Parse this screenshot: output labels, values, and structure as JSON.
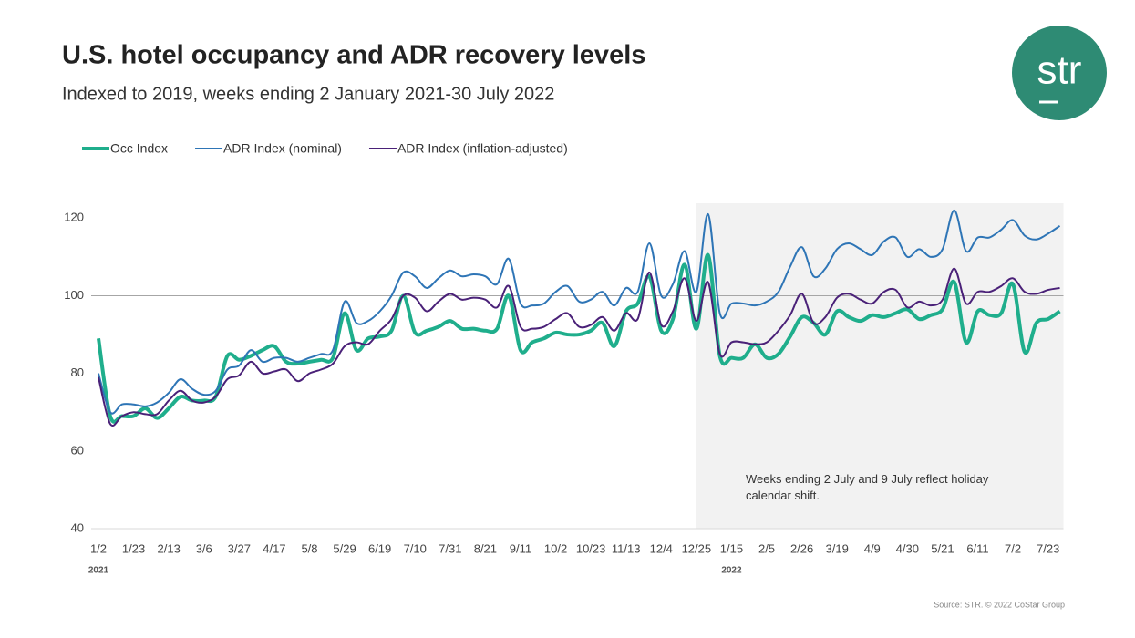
{
  "title": "U.S. hotel occupancy and ADR recovery levels",
  "subtitle": "Indexed to 2019, weeks ending 2 January 2021-30 July 2022",
  "logo": "str",
  "source": "Source: STR. © 2022 CoStar Group",
  "chart_data": {
    "type": "line",
    "categories": [
      "1/2",
      null,
      null,
      "1/23",
      null,
      null,
      "2/13",
      null,
      null,
      "3/6",
      null,
      null,
      "3/27",
      null,
      null,
      "4/17",
      null,
      null,
      "5/8",
      null,
      null,
      "5/29",
      null,
      null,
      "6/19",
      null,
      null,
      "7/10",
      null,
      null,
      "7/31",
      null,
      null,
      "8/21",
      null,
      null,
      "9/11",
      null,
      null,
      "10/2",
      null,
      null,
      "10/23",
      null,
      null,
      "11/13",
      null,
      null,
      "12/4",
      null,
      null,
      "12/25",
      null,
      null,
      "1/15",
      null,
      null,
      "2/5",
      null,
      null,
      "2/26",
      null,
      null,
      "3/19",
      null,
      null,
      "4/9",
      null,
      null,
      "4/30",
      null,
      null,
      "5/21",
      null,
      null,
      "6/11",
      null,
      null,
      "7/2",
      null,
      null,
      "7/23",
      null
    ],
    "x_group_labels": [
      {
        "text": "2021",
        "at": "1/2"
      },
      {
        "text": "2022",
        "at": "1/15"
      }
    ],
    "shaded_from": "12/25",
    "annotation": "Weeks ending 2 July and 9 July reflect holiday calendar shift.",
    "ylim": [
      40,
      125
    ],
    "yticks": [
      40,
      60,
      80,
      100,
      120
    ],
    "reference_line": 100,
    "series": [
      {
        "name": "Occ Index",
        "color": "#1fae8c",
        "width": 4,
        "values": [
          89,
          69,
          69,
          69,
          71,
          68.5,
          71,
          74,
          73,
          73,
          74,
          84.5,
          83.5,
          84.5,
          86,
          87,
          83,
          82.5,
          83,
          83.5,
          84,
          95.5,
          86,
          89,
          89.5,
          91,
          100,
          90.5,
          91,
          92,
          93.5,
          91.5,
          91.5,
          91,
          91.5,
          100,
          86,
          88,
          89,
          90.5,
          90,
          90,
          91,
          93,
          87,
          96,
          98,
          105,
          91,
          94,
          108,
          91.5,
          110.5,
          84.5,
          84,
          84,
          87.5,
          84,
          85,
          89.5,
          94.5,
          93,
          90,
          96,
          94.5,
          93.5,
          95,
          94.5,
          95.5,
          96.5,
          94,
          95,
          96.5,
          103.5,
          88,
          96,
          95,
          95.5,
          103,
          85.5,
          93,
          94,
          96
        ]
      },
      {
        "name": "ADR Index (nominal)",
        "color": "#2e75b6",
        "width": 2,
        "values": [
          80,
          70,
          72,
          72,
          71.5,
          72.5,
          75,
          78.5,
          76,
          74.5,
          75.5,
          81,
          82,
          86,
          83,
          84,
          84,
          83,
          84,
          85,
          86,
          98.5,
          93,
          93.5,
          96,
          100,
          106,
          105,
          102,
          104.5,
          106.5,
          105,
          105.5,
          105,
          103,
          109.5,
          98,
          97.5,
          98,
          101,
          102.5,
          98.5,
          99,
          101,
          97.5,
          102,
          101,
          113.5,
          100,
          103,
          111.5,
          101,
          121,
          95.5,
          98,
          98,
          97.5,
          98.5,
          101,
          107.5,
          112.5,
          105,
          107,
          112,
          113.5,
          112,
          110.5,
          114,
          115,
          110,
          112,
          110,
          112,
          122,
          111.5,
          115,
          115,
          117,
          119.5,
          115.5,
          114.5,
          116,
          118
        ]
      },
      {
        "name": "ADR Index (inflation-adjusted)",
        "color": "#4a2178",
        "width": 2,
        "values": [
          79,
          67,
          69,
          70,
          69.5,
          69.5,
          73,
          75.5,
          73,
          72.5,
          74,
          78.5,
          79.5,
          83,
          80,
          80.5,
          81,
          78,
          80,
          81,
          82.5,
          87,
          88,
          87.5,
          91,
          94,
          100,
          99.5,
          96,
          98.5,
          100.5,
          99,
          99.5,
          99,
          97,
          102.5,
          92,
          91.5,
          92,
          94,
          95.5,
          92,
          92.5,
          94.5,
          91,
          95.5,
          94,
          106,
          92.5,
          96,
          104.5,
          93.5,
          103.5,
          85,
          88,
          88,
          87.5,
          88,
          91,
          95,
          100.5,
          93,
          94.5,
          99.5,
          100.5,
          99,
          98,
          101,
          101.5,
          97,
          98.5,
          97.5,
          99,
          107,
          98,
          101,
          101,
          102.5,
          104.5,
          101,
          100.5,
          101.5,
          102
        ]
      }
    ]
  }
}
